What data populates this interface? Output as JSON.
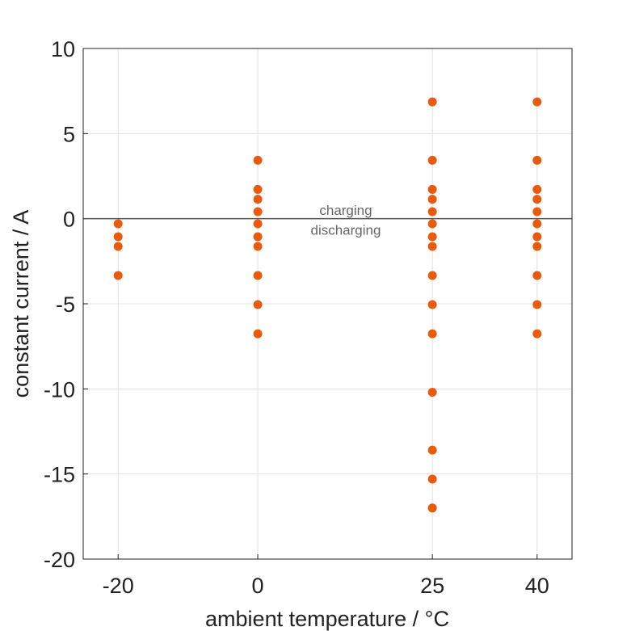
{
  "chart_data": {
    "type": "scatter",
    "title": "",
    "xlabel": "ambient temperature / °C",
    "ylabel": "constant current / A",
    "xlim": [
      -25,
      45
    ],
    "ylim": [
      -20,
      10
    ],
    "xticks": [
      -20,
      0,
      25,
      40
    ],
    "yticks": [
      10,
      5,
      0,
      -5,
      -10,
      -15,
      -20
    ],
    "grid": true,
    "marker_color": "#E85A0C",
    "zero_line_color": "#555555",
    "series": [
      {
        "name": "-20",
        "x": -20,
        "y": [
          -0.3,
          -1.06,
          -1.63,
          -3.34
        ]
      },
      {
        "name": "0",
        "x": 0,
        "y": [
          3.43,
          1.72,
          1.14,
          0.41,
          -0.3,
          -1.06,
          -1.63,
          -3.34,
          -5.05,
          -6.76
        ]
      },
      {
        "name": "25",
        "x": 25,
        "y": [
          6.86,
          3.43,
          1.72,
          1.14,
          0.41,
          -0.3,
          -1.06,
          -1.63,
          -3.34,
          -5.05,
          -6.76,
          -10.2,
          -13.6,
          -15.3,
          -17.0
        ]
      },
      {
        "name": "40",
        "x": 40,
        "y": [
          6.86,
          3.43,
          1.72,
          1.14,
          0.41,
          -0.3,
          -1.06,
          -1.63,
          -3.34,
          -5.05,
          -6.76
        ]
      }
    ],
    "annotations": [
      {
        "text": "charging",
        "x": 12.6,
        "y": 0.5
      },
      {
        "text": "discharging",
        "x": 12.6,
        "y": -0.65
      }
    ]
  }
}
